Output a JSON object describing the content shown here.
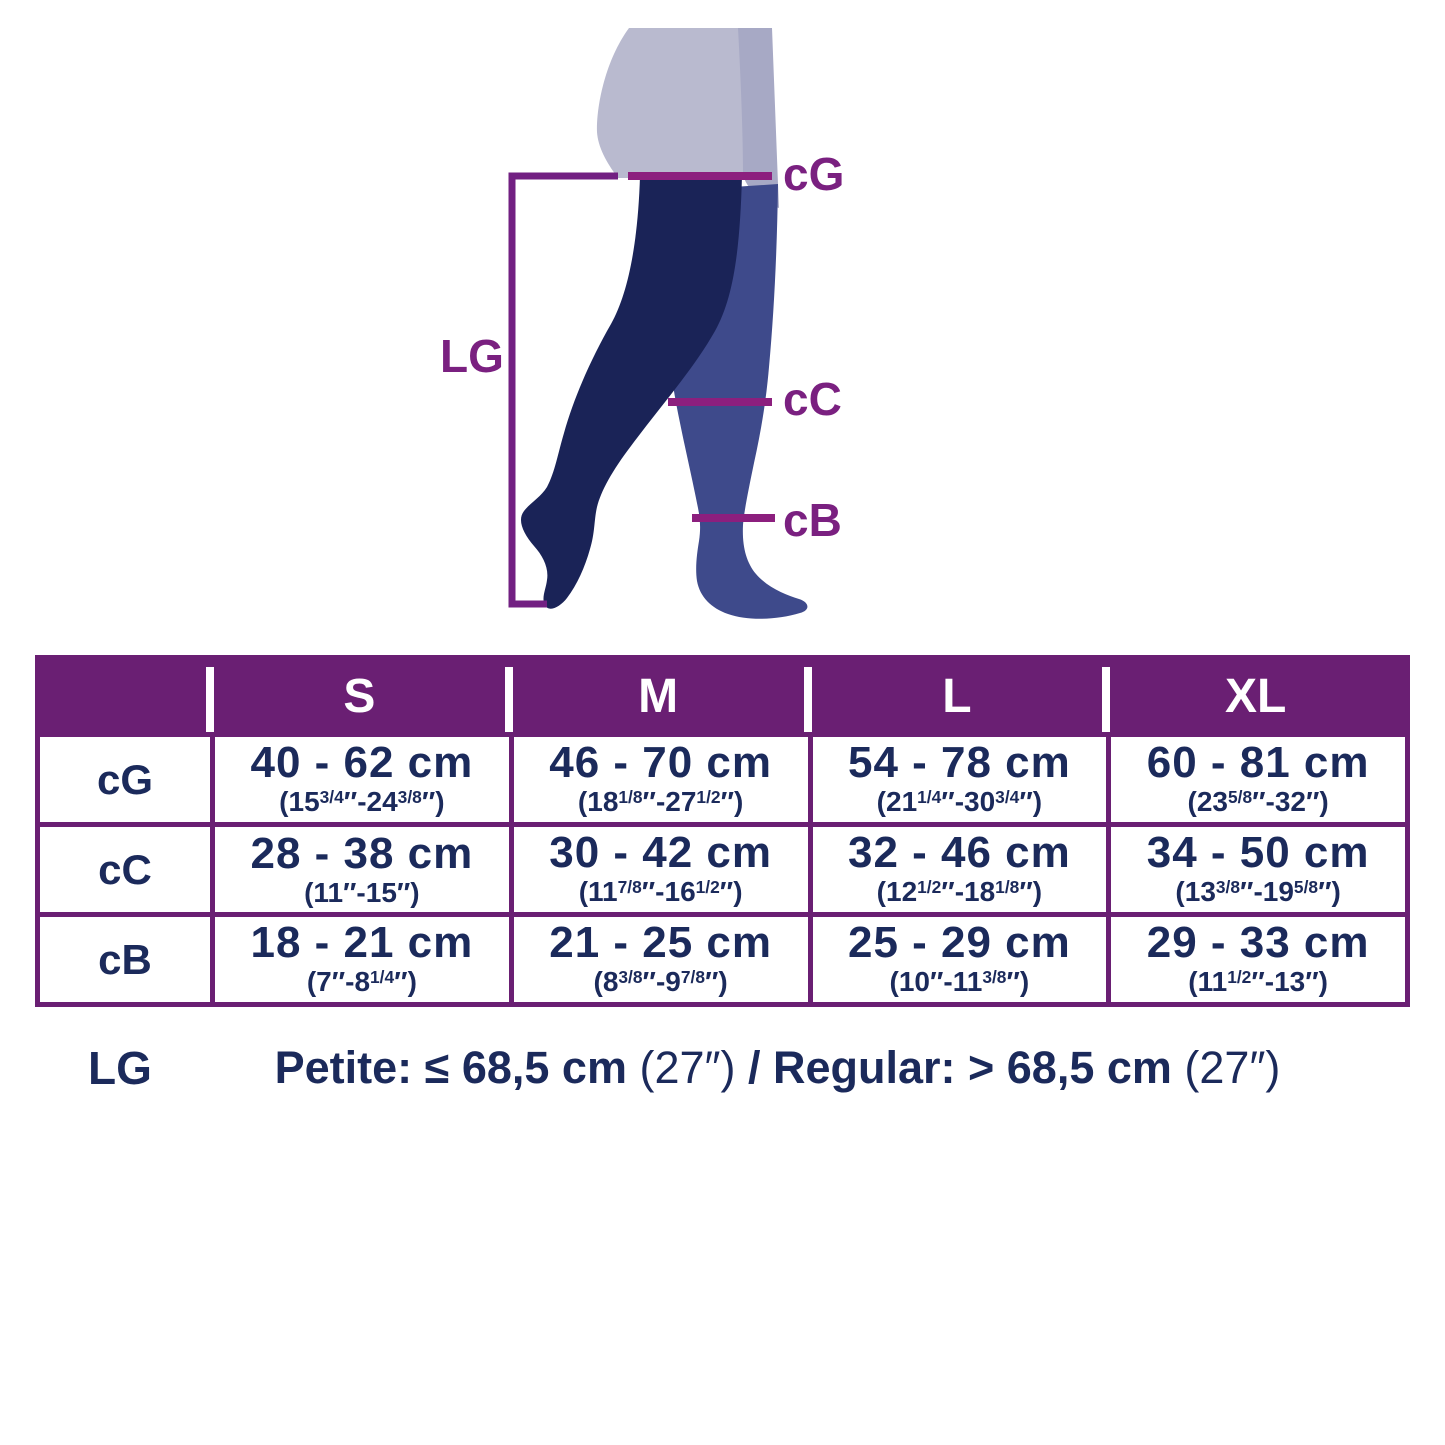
{
  "illustration": {
    "labels": {
      "lg": "LG",
      "cg": "cG",
      "cc": "cC",
      "cb": "cB"
    }
  },
  "table": {
    "header": {
      "c0": "",
      "s": "S",
      "m": "M",
      "l": "L",
      "xl": "XL"
    },
    "rows": [
      {
        "label": "cG",
        "cells": [
          {
            "cm": "40 - 62 cm",
            "in": "(15{3/4}″-24{3/8}″)"
          },
          {
            "cm": "46 - 70 cm",
            "in": "(18{1/8}″-27{1/2}″)"
          },
          {
            "cm": "54 - 78 cm",
            "in": "(21{1/4}″-30{3/4}″)"
          },
          {
            "cm": "60 - 81 cm",
            "in": "(23{5/8}″-32″)"
          }
        ]
      },
      {
        "label": "cC",
        "cells": [
          {
            "cm": "28 - 38 cm",
            "in": "(11″-15″)"
          },
          {
            "cm": "30 - 42 cm",
            "in": "(11{7/8}″-16{1/2}″)"
          },
          {
            "cm": "32 - 46 cm",
            "in": "(12{1/2}″-18{1/8}″)"
          },
          {
            "cm": "34 - 50 cm",
            "in": "(13{3/8}″-19{5/8}″)"
          }
        ]
      },
      {
        "label": "cB",
        "cells": [
          {
            "cm": "18 - 21 cm",
            "in": "(7″-8{1/4}″)"
          },
          {
            "cm": "21 - 25 cm",
            "in": "(8{3/8}″-9{7/8}″)"
          },
          {
            "cm": "25 - 29 cm",
            "in": "(10″-11{3/8}″)"
          },
          {
            "cm": "29 - 33 cm",
            "in": "(11{1/2}″-13″)"
          }
        ]
      }
    ]
  },
  "footer": {
    "label": "LG",
    "segments": [
      {
        "text": "Petite: ≤ 68,5 cm "
      },
      {
        "text": "(27″)"
      },
      {
        "text": " / "
      },
      {
        "text": "Regular: > 68,5 cm "
      },
      {
        "text": "(27″)"
      }
    ]
  },
  "colors": {
    "header_bg": "#6a1f73",
    "table_border": "#6a1f73",
    "header_text": "#ffffff",
    "value_text": "#1b2a5b",
    "front_leg": "#1a2357",
    "back_leg": "#3e4a8b",
    "front_thigh": "#b9bacf",
    "back_thigh": "#a7a9c5",
    "bracket": "#722082",
    "measure_line": "#8c1f7e",
    "measure_label": "#7a2080"
  }
}
